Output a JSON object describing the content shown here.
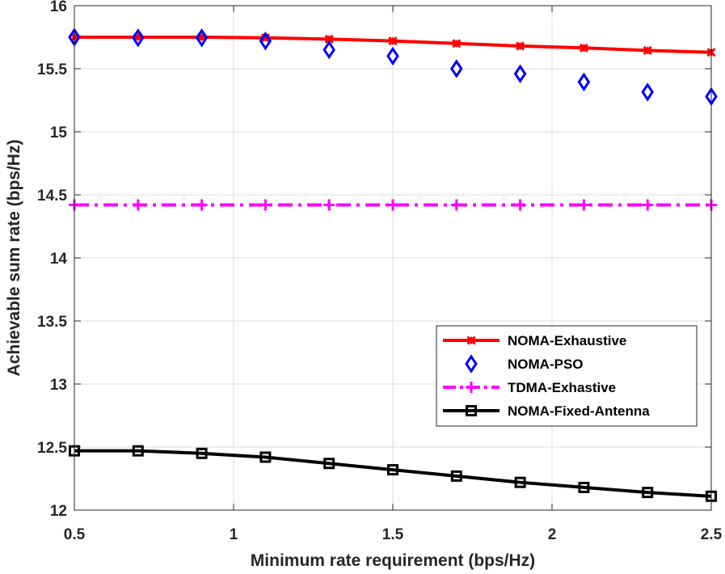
{
  "chart_data": {
    "type": "line",
    "title": "",
    "xlabel": "Minimum rate requirement (bps/Hz)",
    "ylabel": "Achievable sum rate (bps/Hz)",
    "xlim": [
      0.5,
      2.5
    ],
    "ylim": [
      12,
      16
    ],
    "xticks": [
      0.5,
      1,
      1.5,
      2,
      2.5
    ],
    "xtick_labels": [
      "0.5",
      "1",
      "1.5",
      "2",
      "2.5"
    ],
    "yticks": [
      12,
      12.5,
      13,
      13.5,
      14,
      14.5,
      15,
      15.5,
      16
    ],
    "ytick_labels": [
      "12",
      "12.5",
      "13",
      "13.5",
      "14",
      "14.5",
      "15",
      "15.5",
      "16"
    ],
    "grid": true,
    "legend_position": "lower-right",
    "x": [
      0.5,
      0.7,
      0.9,
      1.1,
      1.3,
      1.5,
      1.7,
      1.9,
      2.1,
      2.3,
      2.5
    ],
    "series": [
      {
        "name": "NOMA-Exhaustive",
        "color": "#ff0000",
        "line": "solid",
        "marker": "x-star",
        "values": [
          15.75,
          15.75,
          15.75,
          15.745,
          15.735,
          15.72,
          15.7,
          15.68,
          15.665,
          15.645,
          15.63
        ]
      },
      {
        "name": "NOMA-PSO",
        "color": "#0000ff",
        "line": "none",
        "marker": "diamond",
        "values": [
          15.75,
          15.745,
          15.745,
          15.72,
          15.65,
          15.6,
          15.5,
          15.46,
          15.395,
          15.315,
          15.28
        ]
      },
      {
        "name": "TDMA-Exhastive",
        "color": "#ff00ff",
        "line": "dashdot",
        "marker": "plus",
        "values": [
          14.42,
          14.42,
          14.42,
          14.42,
          14.42,
          14.42,
          14.42,
          14.42,
          14.42,
          14.42,
          14.42
        ]
      },
      {
        "name": "NOMA-Fixed-Antenna",
        "color": "#000000",
        "line": "solid",
        "marker": "square",
        "values": [
          12.47,
          12.47,
          12.45,
          12.42,
          12.37,
          12.32,
          12.27,
          12.22,
          12.18,
          12.14,
          12.11
        ]
      }
    ]
  }
}
